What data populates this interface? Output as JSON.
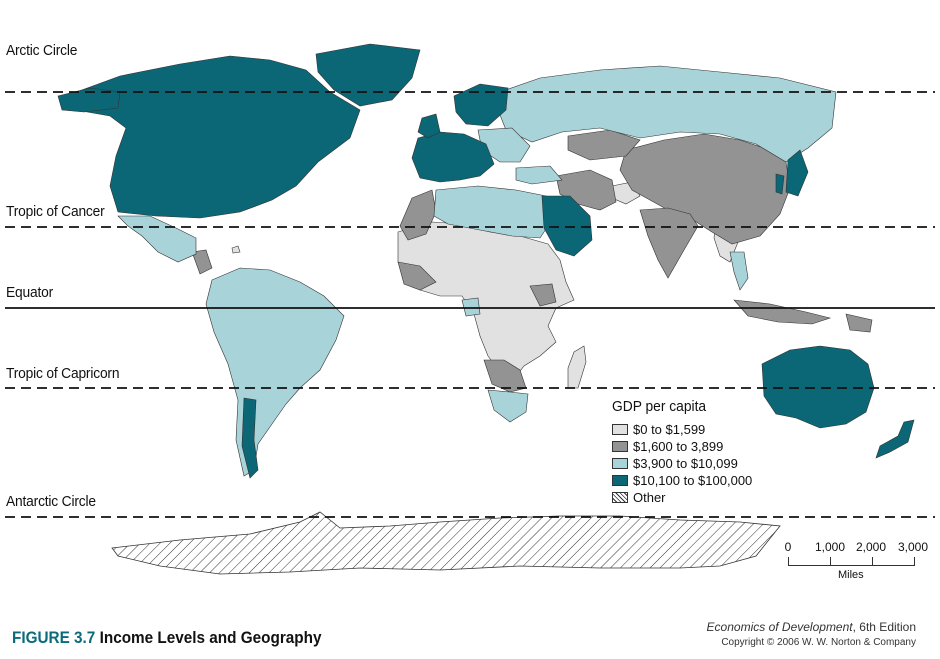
{
  "lines": {
    "arctic_circle": "Arctic Circle",
    "tropic_of_cancer": "Tropic of Cancer",
    "equator": "Equator",
    "tropic_of_capricorn": "Tropic of Capricorn",
    "antarctic_circle": "Antarctic Circle"
  },
  "legend": {
    "title": "GDP per capita",
    "items": [
      {
        "label": "$0 to $1,599",
        "color": "#e1e1e1"
      },
      {
        "label": "$1,600 to 3,899",
        "color": "#939393"
      },
      {
        "label": "$3,900 to $10,099",
        "color": "#a8d3d9"
      },
      {
        "label": "$10,100 to $100,000",
        "color": "#0b6776"
      },
      {
        "label": "Other",
        "color": "hatch"
      }
    ]
  },
  "scale": {
    "ticks": [
      "0",
      "1,000",
      "2,000",
      "3,000"
    ],
    "unit": "Miles"
  },
  "figure": {
    "number": "FIGURE 3.7",
    "title": "Income Levels and Geography"
  },
  "credits": {
    "book": "Economics of Development",
    "edition": ", 6th Edition",
    "copyright": "Copyright © 2006 W. W. Norton & Company"
  }
}
